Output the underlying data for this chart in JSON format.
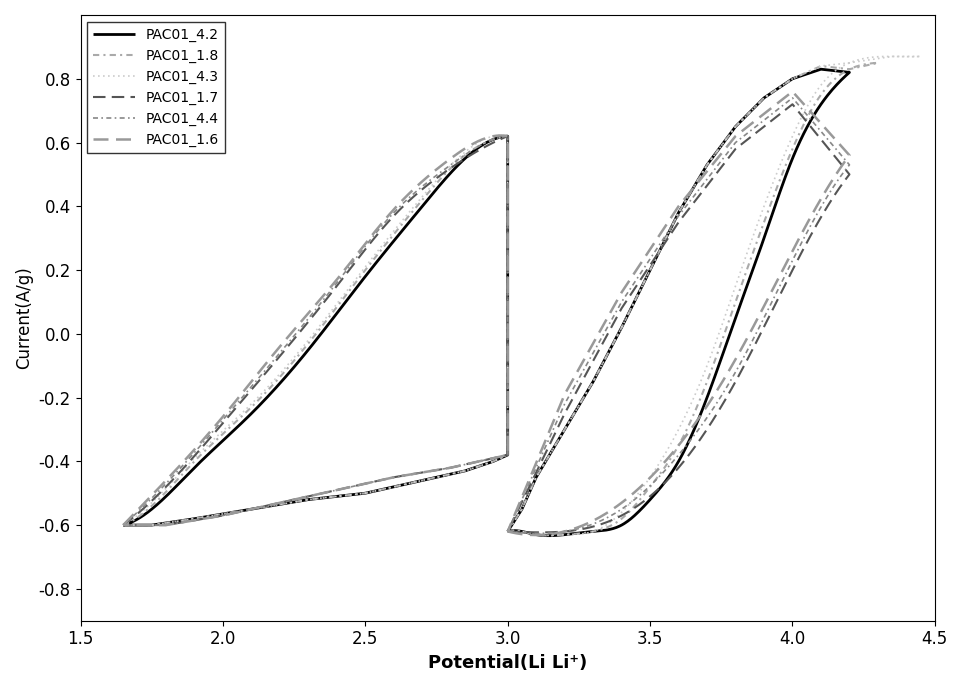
{
  "title": "",
  "xlabel": "Potential(Li Li⁺)",
  "ylabel": "Current(A/g)",
  "xlim": [
    1.5,
    4.5
  ],
  "ylim": [
    -0.9,
    1.0
  ],
  "yticks": [
    -0.8,
    -0.6,
    -0.4,
    -0.2,
    0.0,
    0.2,
    0.4,
    0.6,
    0.8
  ],
  "xticks": [
    1.5,
    2.0,
    2.5,
    3.0,
    3.5,
    4.0,
    4.5
  ],
  "background_color": "#ffffff",
  "series": [
    {
      "label": "PAC01_4.2",
      "color": "#000000",
      "linewidth": 2.0,
      "linestyle": "solid",
      "loop1_x": [
        1.65,
        1.75,
        1.9,
        2.1,
        2.3,
        2.5,
        2.7,
        2.85,
        2.95,
        3.0
      ],
      "loop1_y_top": [
        -0.6,
        -0.55,
        -0.42,
        -0.25,
        -0.05,
        0.18,
        0.4,
        0.55,
        0.61,
        0.62
      ],
      "loop1_y_bot": [
        -0.6,
        -0.6,
        -0.58,
        -0.55,
        -0.52,
        -0.5,
        -0.46,
        -0.43,
        -0.4,
        -0.38
      ],
      "loop2_x": [
        3.0,
        3.05,
        3.1,
        3.2,
        3.3,
        3.4,
        3.5,
        3.6,
        3.7,
        3.8,
        3.9,
        4.0,
        4.1,
        4.2
      ],
      "loop2_y_top": [
        -0.62,
        -0.62,
        -0.63,
        -0.63,
        -0.62,
        -0.6,
        -0.52,
        -0.4,
        -0.2,
        0.05,
        0.3,
        0.55,
        0.72,
        0.82
      ],
      "loop2_y_bot": [
        -0.62,
        -0.55,
        -0.45,
        -0.3,
        -0.15,
        0.02,
        0.2,
        0.38,
        0.53,
        0.65,
        0.74,
        0.8,
        0.83,
        0.82
      ]
    },
    {
      "label": "PAC01_1.8",
      "color": "#aaaaaa",
      "linewidth": 1.5,
      "linestyle": "dashdot",
      "loop1_x": [
        1.65,
        1.75,
        1.9,
        2.1,
        2.3,
        2.5,
        2.7,
        2.85,
        2.95,
        3.0
      ],
      "loop1_y_top": [
        -0.6,
        -0.54,
        -0.4,
        -0.23,
        -0.03,
        0.2,
        0.42,
        0.56,
        0.61,
        0.62
      ],
      "loop1_y_bot": [
        -0.6,
        -0.6,
        -0.58,
        -0.55,
        -0.52,
        -0.5,
        -0.46,
        -0.43,
        -0.4,
        -0.38
      ],
      "loop2_x": [
        3.0,
        3.05,
        3.1,
        3.2,
        3.3,
        3.4,
        3.5,
        3.6,
        3.7,
        3.8,
        3.9,
        4.0,
        4.1,
        4.2,
        4.3
      ],
      "loop2_y_top": [
        -0.62,
        -0.62,
        -0.63,
        -0.63,
        -0.62,
        -0.58,
        -0.48,
        -0.35,
        -0.15,
        0.1,
        0.35,
        0.58,
        0.75,
        0.83,
        0.85
      ],
      "loop2_y_bot": [
        -0.62,
        -0.55,
        -0.45,
        -0.3,
        -0.15,
        0.02,
        0.2,
        0.38,
        0.53,
        0.65,
        0.74,
        0.8,
        0.84,
        0.83,
        0.85
      ]
    },
    {
      "label": "PAC01_4.3",
      "color": "#cccccc",
      "linewidth": 1.2,
      "linestyle": "dotted",
      "loop1_x": [
        1.65,
        1.75,
        1.9,
        2.1,
        2.3,
        2.5,
        2.7,
        2.85,
        2.95,
        3.0
      ],
      "loop1_y_top": [
        -0.6,
        -0.53,
        -0.39,
        -0.22,
        -0.02,
        0.21,
        0.43,
        0.57,
        0.62,
        0.62
      ],
      "loop1_y_bot": [
        -0.6,
        -0.6,
        -0.58,
        -0.55,
        -0.52,
        -0.5,
        -0.46,
        -0.43,
        -0.4,
        -0.38
      ],
      "loop2_x": [
        3.0,
        3.05,
        3.1,
        3.2,
        3.3,
        3.4,
        3.5,
        3.6,
        3.7,
        3.8,
        3.9,
        4.0,
        4.1,
        4.2,
        4.35,
        4.45
      ],
      "loop2_y_top": [
        -0.62,
        -0.62,
        -0.63,
        -0.63,
        -0.62,
        -0.56,
        -0.45,
        -0.3,
        -0.1,
        0.15,
        0.4,
        0.62,
        0.78,
        0.85,
        0.87,
        0.87
      ],
      "loop2_y_bot": [
        -0.62,
        -0.55,
        -0.45,
        -0.3,
        -0.15,
        0.02,
        0.2,
        0.38,
        0.53,
        0.65,
        0.74,
        0.8,
        0.84,
        0.85,
        0.87,
        0.87
      ]
    },
    {
      "label": "PAC01_1.7",
      "color": "#555555",
      "linewidth": 1.5,
      "linestyle": "dashed",
      "loop1_x": [
        1.65,
        1.8,
        2.0,
        2.2,
        2.4,
        2.6,
        2.8,
        2.95,
        3.0
      ],
      "loop1_y_top": [
        -0.6,
        -0.48,
        -0.28,
        -0.07,
        0.15,
        0.37,
        0.52,
        0.6,
        0.62
      ],
      "loop1_y_bot": [
        -0.6,
        -0.6,
        -0.57,
        -0.53,
        -0.49,
        -0.45,
        -0.42,
        -0.39,
        -0.38
      ],
      "loop2_x": [
        3.0,
        3.2,
        3.4,
        3.6,
        3.8,
        4.0,
        4.2
      ],
      "loop2_y_top": [
        -0.62,
        -0.62,
        -0.57,
        -0.42,
        -0.15,
        0.2,
        0.5
      ],
      "loop2_y_bot": [
        -0.62,
        -0.25,
        0.08,
        0.35,
        0.58,
        0.72,
        0.5
      ]
    },
    {
      "label": "PAC01_4.4",
      "color": "#888888",
      "linewidth": 1.2,
      "linestyle": "dashdot",
      "loop1_x": [
        1.65,
        1.8,
        2.0,
        2.2,
        2.4,
        2.6,
        2.8,
        2.95,
        3.0
      ],
      "loop1_y_top": [
        -0.6,
        -0.47,
        -0.27,
        -0.06,
        0.16,
        0.38,
        0.53,
        0.61,
        0.62
      ],
      "loop1_y_bot": [
        -0.6,
        -0.6,
        -0.57,
        -0.53,
        -0.49,
        -0.45,
        -0.42,
        -0.39,
        -0.38
      ],
      "loop2_x": [
        3.0,
        3.2,
        3.4,
        3.6,
        3.8,
        4.0,
        4.2
      ],
      "loop2_y_top": [
        -0.62,
        -0.62,
        -0.55,
        -0.38,
        -0.12,
        0.23,
        0.53
      ],
      "loop2_y_bot": [
        -0.62,
        -0.22,
        0.1,
        0.37,
        0.6,
        0.74,
        0.53
      ]
    },
    {
      "label": "PAC01_1.6",
      "color": "#999999",
      "linewidth": 1.8,
      "linestyle": "dashed",
      "loop1_x": [
        1.65,
        1.8,
        2.0,
        2.2,
        2.4,
        2.6,
        2.8,
        2.95,
        3.0
      ],
      "loop1_y_top": [
        -0.6,
        -0.46,
        -0.26,
        -0.04,
        0.17,
        0.39,
        0.55,
        0.62,
        0.62
      ],
      "loop1_y_bot": [
        -0.6,
        -0.6,
        -0.57,
        -0.53,
        -0.49,
        -0.45,
        -0.42,
        -0.39,
        -0.38
      ],
      "loop2_x": [
        3.0,
        3.2,
        3.4,
        3.6,
        3.8,
        4.0,
        4.2
      ],
      "loop2_y_top": [
        -0.62,
        -0.62,
        -0.53,
        -0.35,
        -0.08,
        0.26,
        0.56
      ],
      "loop2_y_bot": [
        -0.62,
        -0.19,
        0.13,
        0.4,
        0.62,
        0.76,
        0.56
      ]
    }
  ]
}
